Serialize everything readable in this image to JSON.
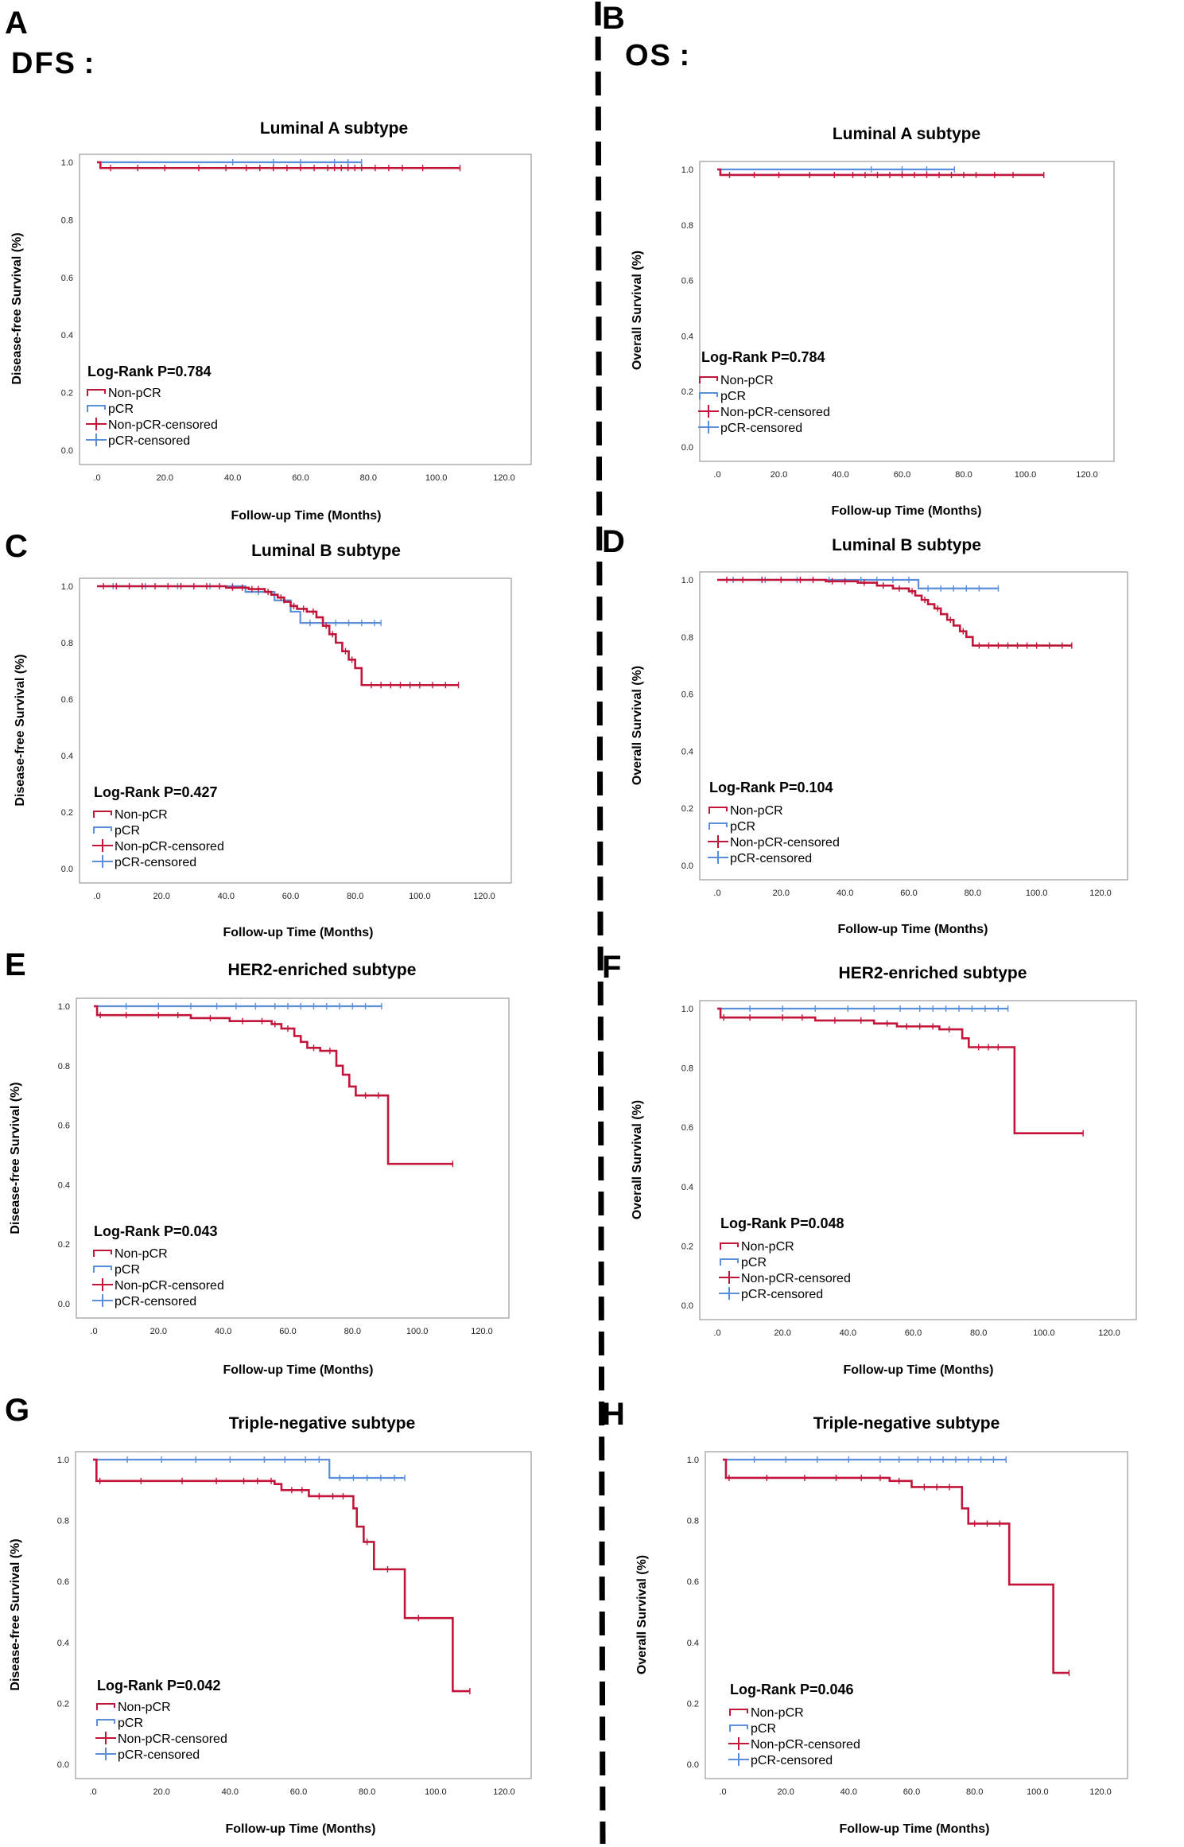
{
  "figure": {
    "group_left": "DFS :",
    "group_right": "OS :",
    "colors": {
      "nonpcr": "#c2153a",
      "pcr": "#5b8fd9"
    }
  },
  "legend": [
    "Non-pCR",
    "pCR",
    "Non-pCR-censored",
    "pCR-censored"
  ],
  "chart_data": [
    {
      "type": "line",
      "panel_label": "A",
      "title": "Luminal A subtype",
      "xlabel": "Follow-up Time (Months)",
      "ylabel": "Disease-free Survival (%)",
      "xlim": [
        0,
        120
      ],
      "ylim": [
        0,
        1
      ],
      "x_ticks": [
        ".0",
        "20.0",
        "40.0",
        "60.0",
        "80.0",
        "100.0",
        "120.0"
      ],
      "y_ticks": [
        "0.0",
        "0.2",
        "0.4",
        "0.6",
        "0.8",
        "1.0"
      ],
      "log_rank": "Log-Rank P=0.784",
      "series": [
        {
          "name": "Non-pCR",
          "steps": [
            [
              0,
              1.0
            ],
            [
              1,
              0.98
            ]
          ],
          "end": 107,
          "censored": [
            4,
            12,
            20,
            30,
            38,
            44,
            48,
            52,
            56,
            60,
            64,
            68,
            70,
            72,
            74,
            76,
            78,
            82,
            86,
            90,
            96,
            107
          ]
        },
        {
          "name": "pCR",
          "steps": [
            [
              0,
              1.0
            ]
          ],
          "end": 78,
          "censored": [
            40,
            52,
            60,
            70,
            74,
            78
          ]
        }
      ]
    },
    {
      "type": "line",
      "panel_label": "B",
      "title": "Luminal A subtype",
      "xlabel": "Follow-up Time (Months)",
      "ylabel": "Overall Survival (%)",
      "xlim": [
        0,
        120
      ],
      "ylim": [
        0,
        1
      ],
      "x_ticks": [
        ".0",
        "20.0",
        "40.0",
        "60.0",
        "80.0",
        "100.0",
        "120.0"
      ],
      "y_ticks": [
        "0.0",
        "0.2",
        "0.4",
        "0.6",
        "0.8",
        "1.0"
      ],
      "log_rank": "Log-Rank P=0.784",
      "series": [
        {
          "name": "Non-pCR",
          "steps": [
            [
              0,
              1.0
            ],
            [
              1,
              0.98
            ]
          ],
          "end": 106,
          "censored": [
            4,
            12,
            20,
            30,
            38,
            44,
            48,
            52,
            56,
            60,
            64,
            68,
            72,
            76,
            80,
            84,
            90,
            96,
            106
          ]
        },
        {
          "name": "pCR",
          "steps": [
            [
              0,
              1.0
            ]
          ],
          "end": 77,
          "censored": [
            50,
            60,
            68,
            77
          ]
        }
      ]
    },
    {
      "type": "line",
      "panel_label": "C",
      "title": "Luminal B subtype",
      "xlabel": "Follow-up Time (Months)",
      "ylabel": "Disease-free Survival (%)",
      "xlim": [
        0,
        120
      ],
      "ylim": [
        0,
        1
      ],
      "x_ticks": [
        ".0",
        "20.0",
        "40.0",
        "60.0",
        "80.0",
        "100.0",
        "120.0"
      ],
      "y_ticks": [
        "0.0",
        "0.2",
        "0.4",
        "0.6",
        "0.8",
        "1.0"
      ],
      "log_rank": "Log-Rank P=0.427",
      "series": [
        {
          "name": "Non-pCR",
          "steps": [
            [
              0,
              1.0
            ],
            [
              40,
              0.995
            ],
            [
              47,
              0.99
            ],
            [
              52,
              0.98
            ],
            [
              54,
              0.97
            ],
            [
              56,
              0.96
            ],
            [
              58,
              0.945
            ],
            [
              60,
              0.93
            ],
            [
              62,
              0.92
            ],
            [
              65,
              0.91
            ],
            [
              68,
              0.89
            ],
            [
              70,
              0.86
            ],
            [
              72,
              0.83
            ],
            [
              74,
              0.8
            ],
            [
              76,
              0.77
            ],
            [
              78,
              0.74
            ],
            [
              80,
              0.71
            ],
            [
              82,
              0.65
            ]
          ],
          "end": 112,
          "censored": [
            2,
            6,
            10,
            14,
            18,
            22,
            26,
            30,
            34,
            38,
            42,
            45,
            48,
            50,
            53,
            57,
            61,
            64,
            67,
            71,
            73,
            77,
            79,
            85,
            88,
            91,
            94,
            97,
            100,
            104,
            108,
            112
          ]
        },
        {
          "name": "pCR",
          "steps": [
            [
              0,
              1.0
            ],
            [
              46,
              0.98
            ],
            [
              55,
              0.95
            ],
            [
              60,
              0.91
            ],
            [
              63,
              0.87
            ]
          ],
          "end": 88,
          "censored": [
            5,
            15,
            25,
            35,
            42,
            50,
            58,
            66,
            70,
            74,
            78,
            82,
            86,
            88
          ]
        }
      ]
    },
    {
      "type": "line",
      "panel_label": "D",
      "title": "Luminal B subtype",
      "xlabel": "Follow-up Time (Months)",
      "ylabel": "Overall Survival (%)",
      "xlim": [
        0,
        120
      ],
      "ylim": [
        0,
        1
      ],
      "x_ticks": [
        ".0",
        "20.0",
        "40.0",
        "60.0",
        "80.0",
        "100.0",
        "120.0"
      ],
      "y_ticks": [
        "0.0",
        "0.2",
        "0.4",
        "0.6",
        "0.8",
        "1.0"
      ],
      "log_rank": "Log-Rank P=0.104",
      "series": [
        {
          "name": "Non-pCR",
          "steps": [
            [
              0,
              1.0
            ],
            [
              34,
              0.995
            ],
            [
              44,
              0.99
            ],
            [
              50,
              0.98
            ],
            [
              55,
              0.97
            ],
            [
              60,
              0.96
            ],
            [
              62,
              0.945
            ],
            [
              64,
              0.93
            ],
            [
              66,
              0.915
            ],
            [
              68,
              0.9
            ],
            [
              70,
              0.88
            ],
            [
              72,
              0.86
            ],
            [
              74,
              0.84
            ],
            [
              76,
              0.82
            ],
            [
              78,
              0.8
            ],
            [
              80,
              0.77
            ]
          ],
          "end": 111,
          "censored": [
            3,
            8,
            14,
            20,
            26,
            30,
            36,
            40,
            46,
            52,
            57,
            61,
            65,
            69,
            73,
            77,
            82,
            85,
            88,
            91,
            94,
            97,
            100,
            104,
            108,
            111
          ]
        },
        {
          "name": "pCR",
          "steps": [
            [
              0,
              1.0
            ],
            [
              63,
              0.97
            ]
          ],
          "end": 88,
          "censored": [
            5,
            15,
            25,
            35,
            45,
            50,
            55,
            60,
            66,
            70,
            74,
            78,
            82,
            88
          ]
        }
      ]
    },
    {
      "type": "line",
      "panel_label": "E",
      "title": "HER2-enriched subtype",
      "xlabel": "Follow-up Time (Months)",
      "ylabel": "Disease-free Survival (%)",
      "xlim": [
        0,
        120
      ],
      "ylim": [
        0,
        1
      ],
      "x_ticks": [
        ".0",
        "20.0",
        "40.0",
        "60.0",
        "80.0",
        "100.0",
        "120.0"
      ],
      "y_ticks": [
        "0.0",
        "0.2",
        "0.4",
        "0.6",
        "0.8",
        "1.0"
      ],
      "log_rank": "Log-Rank P=0.043",
      "series": [
        {
          "name": "Non-pCR",
          "steps": [
            [
              0,
              1.0
            ],
            [
              1,
              0.97
            ],
            [
              30,
              0.96
            ],
            [
              42,
              0.95
            ],
            [
              55,
              0.94
            ],
            [
              58,
              0.925
            ],
            [
              62,
              0.9
            ],
            [
              64,
              0.88
            ],
            [
              66,
              0.86
            ],
            [
              70,
              0.85
            ],
            [
              75,
              0.8
            ],
            [
              77,
              0.77
            ],
            [
              79,
              0.73
            ],
            [
              81,
              0.7
            ],
            [
              91,
              0.47
            ]
          ],
          "end": 111,
          "censored": [
            2,
            10,
            20,
            26,
            36,
            46,
            52,
            56,
            60,
            68,
            73,
            84,
            88,
            111
          ]
        },
        {
          "name": "pCR",
          "steps": [
            [
              0,
              1.0
            ]
          ],
          "end": 89,
          "censored": [
            10,
            20,
            30,
            38,
            44,
            50,
            56,
            60,
            64,
            68,
            72,
            76,
            80,
            84,
            89
          ]
        }
      ]
    },
    {
      "type": "line",
      "panel_label": "F",
      "title": "HER2-enriched subtype",
      "xlabel": "Follow-up Time (Months)",
      "ylabel": "Overall Survival (%)",
      "xlim": [
        0,
        120
      ],
      "ylim": [
        0,
        1
      ],
      "x_ticks": [
        ".0",
        "20.0",
        "40.0",
        "60.0",
        "80.0",
        "100.0",
        "120.0"
      ],
      "y_ticks": [
        "0.0",
        "0.2",
        "0.4",
        "0.6",
        "0.8",
        "1.0"
      ],
      "log_rank": "Log-Rank P=0.048",
      "series": [
        {
          "name": "Non-pCR",
          "steps": [
            [
              0,
              1.0
            ],
            [
              1,
              0.97
            ],
            [
              30,
              0.96
            ],
            [
              48,
              0.95
            ],
            [
              55,
              0.94
            ],
            [
              68,
              0.93
            ],
            [
              75,
              0.9
            ],
            [
              77,
              0.87
            ],
            [
              91,
              0.58
            ]
          ],
          "end": 112,
          "censored": [
            2,
            10,
            20,
            26,
            36,
            44,
            52,
            58,
            62,
            66,
            71,
            80,
            83,
            86,
            112
          ]
        },
        {
          "name": "pCR",
          "steps": [
            [
              0,
              1.0
            ]
          ],
          "end": 89,
          "censored": [
            10,
            20,
            30,
            40,
            48,
            56,
            62,
            66,
            70,
            74,
            78,
            82,
            86,
            89
          ]
        }
      ]
    },
    {
      "type": "line",
      "panel_label": "G",
      "title": "Triple-negative subtype",
      "xlabel": "Follow-up Time (Months)",
      "ylabel": "Disease-free Survival (%)",
      "xlim": [
        0,
        120
      ],
      "ylim": [
        0,
        1
      ],
      "x_ticks": [
        ".0",
        "20.0",
        "40.0",
        "60.0",
        "80.0",
        "100.0",
        "120.0"
      ],
      "y_ticks": [
        "0.0",
        "0.2",
        "0.4",
        "0.6",
        "0.8",
        "1.0"
      ],
      "log_rank": "Log-Rank P=0.042",
      "series": [
        {
          "name": "Non-pCR",
          "steps": [
            [
              0,
              1.0
            ],
            [
              1,
              0.93
            ],
            [
              53,
              0.92
            ],
            [
              55,
              0.9
            ],
            [
              63,
              0.88
            ],
            [
              76,
              0.84
            ],
            [
              77,
              0.78
            ],
            [
              79,
              0.73
            ],
            [
              82,
              0.64
            ],
            [
              91,
              0.48
            ],
            [
              105,
              0.24
            ]
          ],
          "end": 110,
          "censored": [
            2,
            14,
            26,
            36,
            44,
            48,
            52,
            58,
            61,
            66,
            70,
            73,
            80,
            86,
            95,
            110
          ]
        },
        {
          "name": "pCR",
          "steps": [
            [
              0,
              1.0
            ],
            [
              69,
              0.94
            ]
          ],
          "end": 91,
          "censored": [
            10,
            20,
            30,
            40,
            50,
            56,
            62,
            66,
            72,
            76,
            80,
            84,
            88,
            91
          ]
        }
      ]
    },
    {
      "type": "line",
      "panel_label": "H",
      "title": "Triple-negative subtype",
      "xlabel": "Follow-up Time (Months)",
      "ylabel": "Overall Survival (%)",
      "xlim": [
        0,
        120
      ],
      "ylim": [
        0,
        1
      ],
      "x_ticks": [
        ".0",
        "20.0",
        "40.0",
        "60.0",
        "80.0",
        "100.0",
        "120.0"
      ],
      "y_ticks": [
        "0.0",
        "0.2",
        "0.4",
        "0.6",
        "0.8",
        "1.0"
      ],
      "log_rank": "Log-Rank P=0.046",
      "series": [
        {
          "name": "Non-pCR",
          "steps": [
            [
              0,
              1.0
            ],
            [
              1,
              0.94
            ],
            [
              53,
              0.93
            ],
            [
              60,
              0.91
            ],
            [
              76,
              0.84
            ],
            [
              78,
              0.79
            ],
            [
              91,
              0.59
            ],
            [
              105,
              0.3
            ]
          ],
          "end": 110,
          "censored": [
            2,
            14,
            26,
            36,
            44,
            50,
            56,
            64,
            68,
            72,
            80,
            84,
            88,
            110
          ]
        },
        {
          "name": "pCR",
          "steps": [
            [
              0,
              1.0
            ]
          ],
          "end": 90,
          "censored": [
            10,
            20,
            30,
            40,
            50,
            56,
            62,
            66,
            70,
            74,
            78,
            82,
            86,
            90
          ]
        }
      ]
    }
  ]
}
